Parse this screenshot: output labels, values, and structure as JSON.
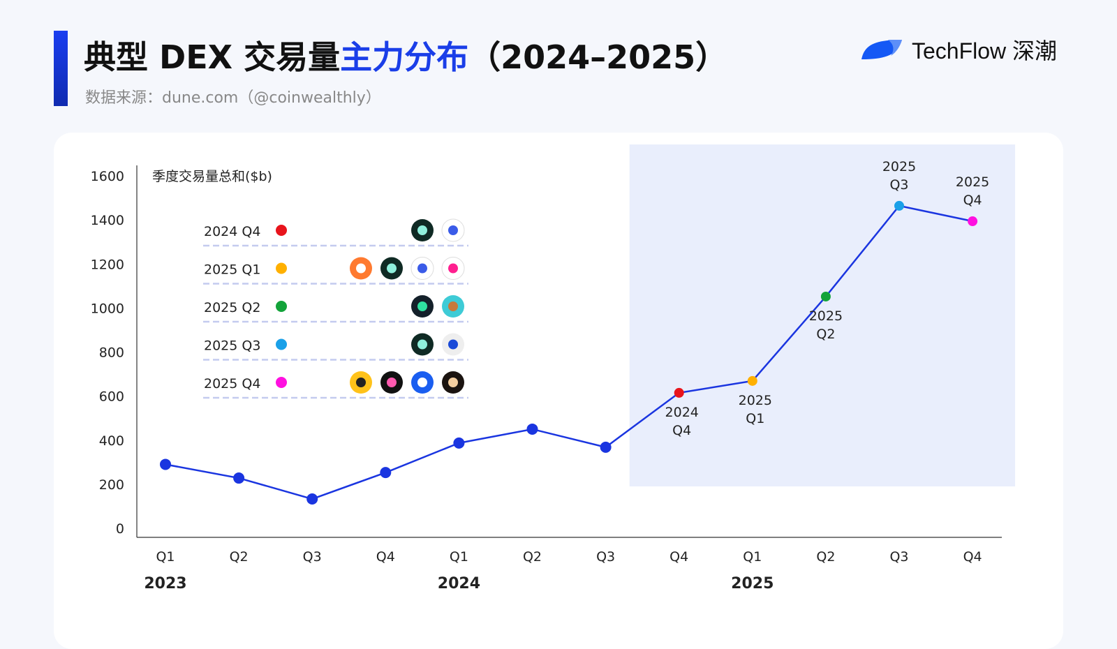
{
  "header": {
    "title_main": "典型 DEX 交易量",
    "title_highlight": "主力分布",
    "title_tail": "（2024–2025）",
    "source": "数据来源：dune.com（@coinwealthly）",
    "brand": "TechFlow 深潮",
    "accent": "#1a3ee8"
  },
  "chart_data": {
    "type": "line",
    "ylabel": "季度交易量总和($b)",
    "ylim": [
      0,
      1600
    ],
    "yticks": [
      "0",
      "200",
      "400",
      "600",
      "800",
      "1000",
      "1200",
      "1400",
      "1600"
    ],
    "categories": [
      "Q1",
      "Q2",
      "Q3",
      "Q4",
      "Q1",
      "Q2",
      "Q3",
      "Q4",
      "Q1",
      "Q2",
      "Q3",
      "Q4"
    ],
    "years": [
      {
        "label": "2023",
        "index": 0
      },
      {
        "label": "2024",
        "index": 4
      },
      {
        "label": "2025",
        "index": 8
      }
    ],
    "values": [
      290,
      228,
      133,
      253,
      387,
      450,
      368,
      615,
      669,
      1052,
      1464,
      1394
    ],
    "line_color": "#1a35e0",
    "highlight_region": {
      "from_index": 7,
      "to_index": 11,
      "color": "#e9eefc"
    },
    "highlighted_points": [
      {
        "index": 7,
        "label": [
          "2024",
          "Q4"
        ],
        "color": "#e8141c",
        "label_pos": "below"
      },
      {
        "index": 8,
        "label": [
          "2025",
          "Q1"
        ],
        "color": "#ffb000",
        "label_pos": "below"
      },
      {
        "index": 9,
        "label": [
          "2025",
          "Q2"
        ],
        "color": "#13a33a",
        "label_pos": "below"
      },
      {
        "index": 10,
        "label": [
          "2025",
          "Q3"
        ],
        "color": "#1aa0e8",
        "label_pos": "above"
      },
      {
        "index": 11,
        "label": [
          "2025",
          "Q4"
        ],
        "color": "#ff10e0",
        "label_pos": "above"
      }
    ],
    "legend": [
      {
        "label": "2024 Q4",
        "color": "#e8141c",
        "icons": [
          {
            "name": "teal-butterfly-icon",
            "bg": "#0f2a24",
            "fg": "#8ff0dc"
          },
          {
            "name": "raydium-r-icon",
            "bg": "#ffffff",
            "fg": "#3a5be8"
          }
        ]
      },
      {
        "label": "2025 Q1",
        "color": "#ffb000",
        "icons": [
          {
            "name": "orange-stripes-icon",
            "bg": "#ff7a30",
            "fg": "#ffffff"
          },
          {
            "name": "teal-butterfly-icon",
            "bg": "#0f2a24",
            "fg": "#8ff0dc"
          },
          {
            "name": "raydium-r-icon",
            "bg": "#ffffff",
            "fg": "#3a5be8"
          },
          {
            "name": "unicorn-icon",
            "bg": "#ffffff",
            "fg": "#ff1f8f"
          }
        ]
      },
      {
        "label": "2025 Q2",
        "color": "#13a33a",
        "icons": [
          {
            "name": "pill-icon",
            "bg": "#14202a",
            "fg": "#2fe0a0"
          },
          {
            "name": "pancake-bunny-icon",
            "bg": "#3ecbd6",
            "fg": "#c77a3b"
          }
        ]
      },
      {
        "label": "2025 Q3",
        "color": "#1aa0e8",
        "icons": [
          {
            "name": "teal-butterfly-icon",
            "bg": "#0f2a24",
            "fg": "#8ff0dc"
          },
          {
            "name": "blue-ring-icon",
            "bg": "#eeeeee",
            "fg": "#1a4ad8"
          }
        ]
      },
      {
        "label": "2025 Q4",
        "color": "#ff10e0",
        "icons": [
          {
            "name": "yellow-mascot-icon",
            "bg": "#ffc21a",
            "fg": "#222222"
          },
          {
            "name": "x-cross-icon",
            "bg": "#111111",
            "fg": "#ff5ab0"
          },
          {
            "name": "blue-hexagon-icon",
            "bg": "#1a5ef0",
            "fg": "#ffffff"
          },
          {
            "name": "compass-star-icon",
            "bg": "#1b1410",
            "fg": "#f5cfa0"
          }
        ]
      }
    ]
  }
}
